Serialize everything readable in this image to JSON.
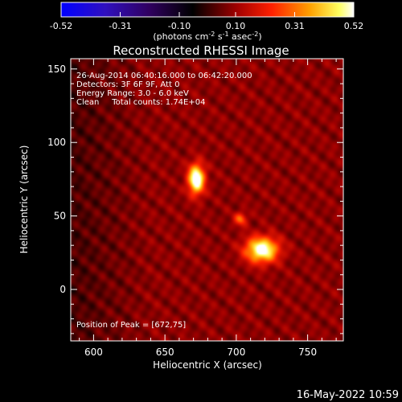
{
  "colorbar": {
    "ticks": [
      "-0.52",
      "-0.31",
      "-0.10",
      "0.10",
      "0.31",
      "0.52"
    ],
    "tick_values": [
      -0.52,
      -0.31,
      -0.1,
      0.1,
      0.31,
      0.52
    ],
    "range": [
      -0.52,
      0.52
    ],
    "label_main": "(photons cm",
    "label_exp1": "-2",
    "label_mid": " s",
    "label_exp2": "-1",
    "label_end": " asec",
    "label_exp3": "-2",
    "label_close": ")",
    "colors": [
      "#0000ff",
      "#4b0082",
      "#000000",
      "#8b0000",
      "#ff0000",
      "#ff8c00",
      "#ffff00",
      "#ffffff"
    ]
  },
  "title": "Reconstructed RHESSI Image",
  "info": {
    "line1": "26-Aug-2014 06:40:16.000 to 06:42:20.000",
    "line2": "Detectors: 3F 6F 9F, Att 0",
    "line3": "Energy Range: 3.0 - 6.0 keV",
    "line4": "Clean     Total counts: 1.74E+04",
    "peak": "Position of Peak = [672,75]"
  },
  "footer_date": "16-May-2022 10:59",
  "chart_data": {
    "type": "heatmap",
    "title": "Reconstructed RHESSI Image",
    "xlabel": "Heliocentric X (arcsec)",
    "ylabel": "Heliocentric Y (arcsec)",
    "xlim": [
      584,
      775
    ],
    "ylim": [
      -35,
      157
    ],
    "x_ticks": [
      600,
      650,
      700,
      750
    ],
    "y_ticks": [
      0,
      50,
      100,
      150
    ],
    "sources": [
      {
        "x": 672,
        "y": 75,
        "peak": 0.52,
        "sx": 4,
        "sy": 7
      },
      {
        "x": 718,
        "y": 27,
        "peak": 0.48,
        "sx": 8,
        "sy": 6
      },
      {
        "x": 703,
        "y": 48,
        "peak": 0.22,
        "sx": 3,
        "sy": 3
      }
    ],
    "peak_position": [
      672,
      75
    ]
  }
}
